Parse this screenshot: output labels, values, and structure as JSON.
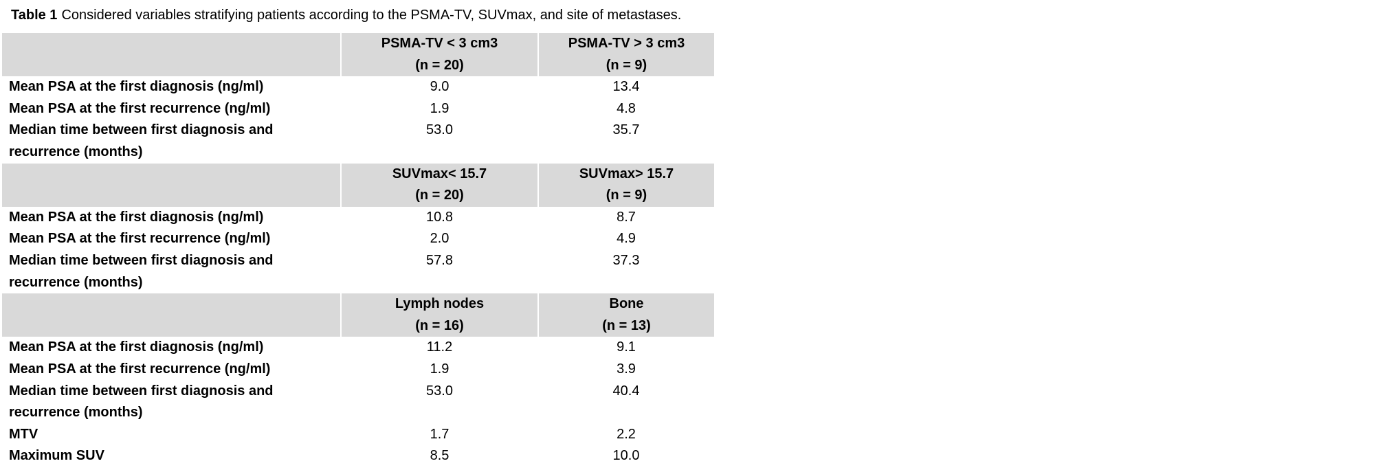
{
  "title": {
    "label": "Table 1",
    "text": "Considered variables stratifying patients according to the PSMA-TV, SUVmax, and site of metastases."
  },
  "table": {
    "sections": [
      {
        "header": [
          [
            "PSMA-TV < 3 cm3",
            "(n = 20)"
          ],
          [
            "PSMA-TV > 3 cm3",
            "(n = 9)"
          ]
        ],
        "rows": [
          [
            [
              "Mean PSA at the first diagnosis (ng/ml)"
            ],
            "9.0",
            "13.4"
          ],
          [
            [
              "Mean PSA at the first recurrence (ng/ml)"
            ],
            "1.9",
            "4.8"
          ],
          [
            [
              "Median time between first diagnosis and",
              "recurrence (months)"
            ],
            "53.0",
            "35.7"
          ]
        ]
      },
      {
        "header": [
          [
            "SUVmax< 15.7",
            "(n = 20)"
          ],
          [
            "SUVmax> 15.7",
            "(n = 9)"
          ]
        ],
        "rows": [
          [
            [
              "Mean PSA at the first diagnosis (ng/ml)"
            ],
            "10.8",
            "8.7"
          ],
          [
            [
              "Mean PSA at the first recurrence (ng/ml)"
            ],
            "2.0",
            "4.9"
          ],
          [
            [
              "Median time between first diagnosis and",
              "recurrence (months)"
            ],
            "57.8",
            "37.3"
          ]
        ]
      },
      {
        "header": [
          [
            "Lymph nodes",
            "(n = 16)"
          ],
          [
            "Bone",
            "(n = 13)"
          ]
        ],
        "rows": [
          [
            [
              "Mean PSA at the first diagnosis (ng/ml)"
            ],
            "11.2",
            "9.1"
          ],
          [
            [
              "Mean PSA at the first recurrence (ng/ml)"
            ],
            "1.9",
            "3.9"
          ],
          [
            [
              "Median time between first diagnosis and",
              "recurrence (months)"
            ],
            "53.0",
            "40.4"
          ],
          [
            [
              "MTV"
            ],
            "1.7",
            "2.2"
          ],
          [
            [
              "Maximum SUV"
            ],
            "8.5",
            "10.0"
          ]
        ]
      }
    ]
  }
}
